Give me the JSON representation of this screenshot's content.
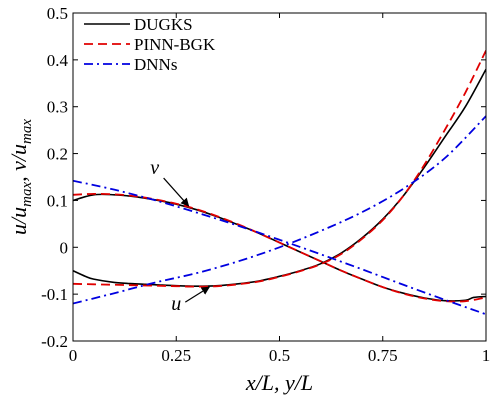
{
  "chart_data": {
    "type": "line",
    "title": "",
    "xlabel": "x/L, y/L",
    "ylabel": "u/u_max, v/u_max",
    "xlim": [
      0,
      1
    ],
    "ylim": [
      -0.2,
      0.5
    ],
    "xticks": [
      "0",
      "0.25",
      "0.5",
      "0.75",
      "1"
    ],
    "yticks": [
      "-0.2",
      "-0.1",
      "0",
      "0.1",
      "0.2",
      "0.3",
      "0.4",
      "0.5"
    ],
    "grid": false,
    "legend_position": "top-left",
    "legend": [
      "DUGKS",
      "PINN-BGK",
      "DNNs"
    ],
    "annotations": [
      {
        "text": "v",
        "target": [
          0.28,
          0.088
        ]
      },
      {
        "text": "u",
        "target": [
          0.33,
          -0.085
        ]
      }
    ],
    "series": [
      {
        "name": "DUGKS",
        "style": "solid",
        "color": "#000000",
        "group": "v",
        "x": [
          0,
          0.05,
          0.1,
          0.15,
          0.2,
          0.25,
          0.3,
          0.35,
          0.4,
          0.45,
          0.5,
          0.55,
          0.6,
          0.65,
          0.7,
          0.75,
          0.8,
          0.85,
          0.9,
          0.95,
          0.97,
          1.0
        ],
        "y": [
          0.1,
          0.112,
          0.112,
          0.108,
          0.101,
          0.092,
          0.08,
          0.065,
          0.048,
          0.03,
          0.01,
          -0.01,
          -0.03,
          -0.05,
          -0.068,
          -0.085,
          -0.098,
          -0.108,
          -0.114,
          -0.113,
          -0.107,
          -0.105
        ]
      },
      {
        "name": "DUGKS",
        "style": "solid",
        "color": "#000000",
        "group": "u",
        "x": [
          0,
          0.03,
          0.05,
          0.1,
          0.15,
          0.2,
          0.25,
          0.3,
          0.35,
          0.4,
          0.45,
          0.5,
          0.55,
          0.6,
          0.65,
          0.7,
          0.75,
          0.8,
          0.85,
          0.9,
          0.95,
          1.0
        ],
        "y": [
          -0.05,
          -0.062,
          -0.068,
          -0.075,
          -0.078,
          -0.08,
          -0.082,
          -0.083,
          -0.082,
          -0.078,
          -0.072,
          -0.062,
          -0.05,
          -0.035,
          -0.012,
          0.02,
          0.06,
          0.11,
          0.17,
          0.235,
          0.3,
          0.38
        ]
      },
      {
        "name": "PINN-BGK",
        "style": "dashed",
        "color": "#e00000",
        "group": "v",
        "x": [
          0,
          0.05,
          0.1,
          0.15,
          0.2,
          0.25,
          0.3,
          0.35,
          0.4,
          0.45,
          0.5,
          0.55,
          0.6,
          0.65,
          0.7,
          0.75,
          0.8,
          0.85,
          0.9,
          0.95,
          1.0
        ],
        "y": [
          0.112,
          0.114,
          0.113,
          0.109,
          0.102,
          0.093,
          0.081,
          0.066,
          0.049,
          0.03,
          0.01,
          -0.01,
          -0.03,
          -0.05,
          -0.068,
          -0.085,
          -0.099,
          -0.109,
          -0.115,
          -0.115,
          -0.107
        ]
      },
      {
        "name": "PINN-BGK",
        "style": "dashed",
        "color": "#e00000",
        "group": "u",
        "x": [
          0,
          0.05,
          0.1,
          0.15,
          0.2,
          0.25,
          0.3,
          0.35,
          0.4,
          0.45,
          0.5,
          0.55,
          0.6,
          0.65,
          0.7,
          0.75,
          0.8,
          0.85,
          0.9,
          0.95,
          1.0
        ],
        "y": [
          -0.078,
          -0.079,
          -0.08,
          -0.081,
          -0.082,
          -0.083,
          -0.084,
          -0.083,
          -0.079,
          -0.073,
          -0.063,
          -0.051,
          -0.036,
          -0.014,
          0.018,
          0.058,
          0.11,
          0.175,
          0.25,
          0.33,
          0.42
        ]
      },
      {
        "name": "DNNs",
        "style": "dashdot",
        "color": "#0000e0",
        "group": "v",
        "x": [
          0,
          0.1,
          0.2,
          0.3,
          0.4,
          0.5,
          0.6,
          0.7,
          0.8,
          0.9,
          1.0
        ],
        "y": [
          0.142,
          0.123,
          0.1,
          0.074,
          0.046,
          0.016,
          -0.015,
          -0.047,
          -0.08,
          -0.112,
          -0.143
        ]
      },
      {
        "name": "DNNs",
        "style": "dashdot",
        "color": "#0000e0",
        "group": "u",
        "x": [
          0,
          0.1,
          0.2,
          0.3,
          0.4,
          0.5,
          0.6,
          0.7,
          0.8,
          0.9,
          1.0
        ],
        "y": [
          -0.12,
          -0.098,
          -0.075,
          -0.055,
          -0.03,
          0.0,
          0.035,
          0.075,
          0.125,
          0.19,
          0.28
        ]
      }
    ]
  }
}
